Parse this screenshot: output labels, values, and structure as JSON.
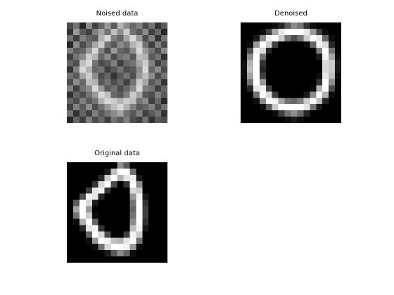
{
  "chart_data": [
    {
      "type": "heatmap",
      "title": "Noised data",
      "colormap": "gray",
      "value_range": [
        0,
        1
      ],
      "rows": 16,
      "cols": 16,
      "values": [
        [
          0.3,
          0.45,
          0.15,
          0.55,
          0.25,
          0.4,
          0.6,
          0.35,
          0.7,
          0.55,
          0.4,
          0.5,
          0.3,
          0.45,
          0.2,
          0.35
        ],
        [
          0.2,
          0.6,
          0.35,
          0.25,
          0.5,
          0.65,
          0.45,
          0.75,
          0.55,
          0.8,
          0.45,
          0.35,
          0.55,
          0.25,
          0.4,
          0.15
        ],
        [
          0.45,
          0.25,
          0.5,
          0.4,
          0.35,
          0.7,
          0.85,
          0.5,
          0.4,
          0.65,
          0.85,
          0.6,
          0.3,
          0.5,
          0.2,
          0.45
        ],
        [
          0.15,
          0.55,
          0.3,
          0.45,
          0.65,
          0.8,
          0.45,
          0.35,
          0.55,
          0.45,
          0.7,
          0.8,
          0.45,
          0.25,
          0.5,
          0.3
        ],
        [
          0.5,
          0.35,
          0.4,
          0.6,
          0.85,
          0.5,
          0.3,
          0.6,
          0.4,
          0.35,
          0.55,
          0.85,
          0.6,
          0.45,
          0.3,
          0.55
        ],
        [
          0.25,
          0.45,
          0.55,
          0.8,
          0.7,
          0.4,
          0.55,
          0.3,
          0.45,
          0.5,
          0.35,
          0.75,
          0.7,
          0.35,
          0.45,
          0.2
        ],
        [
          0.4,
          0.3,
          0.75,
          0.85,
          0.45,
          0.3,
          0.35,
          0.5,
          0.25,
          0.4,
          0.45,
          0.65,
          0.8,
          0.5,
          0.25,
          0.4
        ],
        [
          0.2,
          0.5,
          0.85,
          0.7,
          0.4,
          0.45,
          0.25,
          0.35,
          0.45,
          0.3,
          0.35,
          0.55,
          0.85,
          0.4,
          0.55,
          0.3
        ],
        [
          0.45,
          0.35,
          0.65,
          0.8,
          0.55,
          0.3,
          0.4,
          0.2,
          0.35,
          0.45,
          0.3,
          0.6,
          0.75,
          0.55,
          0.3,
          0.45
        ],
        [
          0.3,
          0.55,
          0.4,
          0.75,
          0.7,
          0.35,
          0.45,
          0.3,
          0.4,
          0.25,
          0.45,
          0.8,
          0.65,
          0.35,
          0.45,
          0.2
        ],
        [
          0.5,
          0.25,
          0.45,
          0.55,
          0.85,
          0.6,
          0.35,
          0.45,
          0.3,
          0.4,
          0.55,
          0.85,
          0.5,
          0.45,
          0.25,
          0.4
        ],
        [
          0.2,
          0.4,
          0.3,
          0.45,
          0.6,
          0.85,
          0.75,
          0.4,
          0.35,
          0.5,
          0.8,
          0.65,
          0.35,
          0.3,
          0.5,
          0.35
        ],
        [
          0.4,
          0.3,
          0.5,
          0.35,
          0.45,
          0.7,
          0.85,
          0.8,
          0.7,
          0.8,
          0.75,
          0.45,
          0.55,
          0.25,
          0.4,
          0.15
        ],
        [
          0.25,
          0.5,
          0.35,
          0.55,
          0.3,
          0.45,
          0.6,
          0.75,
          0.85,
          0.7,
          0.5,
          0.35,
          0.4,
          0.5,
          0.3,
          0.45
        ],
        [
          0.45,
          0.2,
          0.4,
          0.25,
          0.5,
          0.35,
          0.45,
          0.55,
          0.65,
          0.45,
          0.35,
          0.5,
          0.25,
          0.35,
          0.45,
          0.2
        ],
        [
          0.15,
          0.4,
          0.25,
          0.5,
          0.3,
          0.4,
          0.25,
          0.45,
          0.35,
          0.5,
          0.3,
          0.25,
          0.45,
          0.2,
          0.35,
          0.3
        ]
      ]
    },
    {
      "type": "heatmap",
      "title": "Denoised",
      "colormap": "gray",
      "value_range": [
        0,
        1
      ],
      "rows": 16,
      "cols": 16,
      "values": [
        [
          0.0,
          0.0,
          0.0,
          0.0,
          0.0,
          0.05,
          0.15,
          0.35,
          0.55,
          0.45,
          0.2,
          0.05,
          0.0,
          0.0,
          0.0,
          0.0
        ],
        [
          0.0,
          0.0,
          0.0,
          0.05,
          0.25,
          0.65,
          0.9,
          1.0,
          1.0,
          1.0,
          0.9,
          0.6,
          0.25,
          0.05,
          0.0,
          0.0
        ],
        [
          0.0,
          0.0,
          0.1,
          0.55,
          0.95,
          1.0,
          0.8,
          0.45,
          0.3,
          0.45,
          0.8,
          1.0,
          0.9,
          0.4,
          0.05,
          0.0
        ],
        [
          0.0,
          0.05,
          0.6,
          1.0,
          0.8,
          0.25,
          0.0,
          0.0,
          0.0,
          0.0,
          0.05,
          0.4,
          0.95,
          0.85,
          0.15,
          0.0
        ],
        [
          0.0,
          0.3,
          0.95,
          0.85,
          0.15,
          0.0,
          0.0,
          0.0,
          0.0,
          0.0,
          0.0,
          0.0,
          0.5,
          1.0,
          0.45,
          0.0
        ],
        [
          0.0,
          0.55,
          1.0,
          0.45,
          0.0,
          0.0,
          0.0,
          0.0,
          0.0,
          0.0,
          0.0,
          0.0,
          0.1,
          0.95,
          0.65,
          0.05
        ],
        [
          0.05,
          0.7,
          1.0,
          0.2,
          0.0,
          0.0,
          0.0,
          0.0,
          0.0,
          0.0,
          0.0,
          0.0,
          0.0,
          0.85,
          0.8,
          0.1
        ],
        [
          0.05,
          0.75,
          1.0,
          0.15,
          0.0,
          0.0,
          0.0,
          0.0,
          0.0,
          0.0,
          0.0,
          0.0,
          0.0,
          0.85,
          0.8,
          0.1
        ],
        [
          0.05,
          0.65,
          1.0,
          0.25,
          0.0,
          0.0,
          0.0,
          0.0,
          0.0,
          0.0,
          0.0,
          0.0,
          0.05,
          0.9,
          0.75,
          0.05
        ],
        [
          0.0,
          0.45,
          1.0,
          0.6,
          0.0,
          0.0,
          0.0,
          0.0,
          0.0,
          0.0,
          0.0,
          0.0,
          0.2,
          1.0,
          0.55,
          0.0
        ],
        [
          0.0,
          0.15,
          0.9,
          0.95,
          0.25,
          0.0,
          0.0,
          0.0,
          0.0,
          0.0,
          0.0,
          0.05,
          0.7,
          1.0,
          0.3,
          0.0
        ],
        [
          0.0,
          0.0,
          0.45,
          1.0,
          0.85,
          0.25,
          0.0,
          0.0,
          0.0,
          0.0,
          0.1,
          0.55,
          1.0,
          0.7,
          0.05,
          0.0
        ],
        [
          0.0,
          0.0,
          0.05,
          0.55,
          1.0,
          0.95,
          0.65,
          0.45,
          0.4,
          0.5,
          0.8,
          1.0,
          0.75,
          0.15,
          0.0,
          0.0
        ],
        [
          0.0,
          0.0,
          0.0,
          0.05,
          0.35,
          0.8,
          1.0,
          1.0,
          1.0,
          1.0,
          0.9,
          0.45,
          0.1,
          0.0,
          0.0,
          0.0
        ],
        [
          0.0,
          0.0,
          0.0,
          0.0,
          0.0,
          0.05,
          0.25,
          0.45,
          0.55,
          0.4,
          0.15,
          0.0,
          0.0,
          0.0,
          0.0,
          0.0
        ],
        [
          0.0,
          0.0,
          0.0,
          0.0,
          0.0,
          0.0,
          0.0,
          0.05,
          0.1,
          0.05,
          0.0,
          0.0,
          0.0,
          0.0,
          0.0,
          0.0
        ]
      ]
    },
    {
      "type": "heatmap",
      "title": "Original data",
      "colormap": "gray",
      "value_range": [
        0,
        1
      ],
      "rows": 16,
      "cols": 16,
      "values": [
        [
          0.0,
          0.0,
          0.0,
          0.0,
          0.0,
          0.0,
          0.0,
          0.0,
          0.55,
          0.35,
          0.0,
          0.0,
          0.0,
          0.0,
          0.0,
          0.0
        ],
        [
          0.0,
          0.0,
          0.0,
          0.0,
          0.0,
          0.0,
          0.1,
          0.75,
          1.0,
          1.0,
          0.45,
          0.0,
          0.0,
          0.0,
          0.0,
          0.0
        ],
        [
          0.0,
          0.0,
          0.0,
          0.0,
          0.0,
          0.15,
          0.8,
          1.0,
          0.7,
          0.9,
          0.95,
          0.1,
          0.0,
          0.0,
          0.0,
          0.0
        ],
        [
          0.0,
          0.0,
          0.0,
          0.0,
          0.2,
          0.85,
          1.0,
          0.3,
          0.0,
          0.2,
          1.0,
          0.55,
          0.0,
          0.0,
          0.0,
          0.0
        ],
        [
          0.0,
          0.0,
          0.0,
          0.25,
          0.9,
          0.95,
          0.2,
          0.0,
          0.0,
          0.0,
          0.85,
          0.8,
          0.0,
          0.0,
          0.0,
          0.0
        ],
        [
          0.0,
          0.0,
          0.3,
          0.95,
          0.9,
          0.15,
          0.0,
          0.0,
          0.0,
          0.0,
          0.6,
          0.95,
          0.1,
          0.0,
          0.0,
          0.0
        ],
        [
          0.0,
          0.35,
          1.0,
          0.85,
          0.1,
          0.0,
          0.0,
          0.0,
          0.0,
          0.0,
          0.45,
          1.0,
          0.2,
          0.0,
          0.0,
          0.0
        ],
        [
          0.0,
          0.65,
          1.0,
          0.6,
          0.0,
          0.0,
          0.0,
          0.0,
          0.0,
          0.0,
          0.4,
          1.0,
          0.25,
          0.0,
          0.0,
          0.0
        ],
        [
          0.0,
          0.45,
          1.0,
          0.8,
          0.05,
          0.0,
          0.0,
          0.0,
          0.0,
          0.0,
          0.45,
          1.0,
          0.25,
          0.0,
          0.0,
          0.0
        ],
        [
          0.0,
          0.05,
          0.7,
          1.0,
          0.4,
          0.0,
          0.0,
          0.0,
          0.0,
          0.0,
          0.55,
          1.0,
          0.2,
          0.0,
          0.0,
          0.0
        ],
        [
          0.0,
          0.0,
          0.15,
          0.9,
          0.95,
          0.2,
          0.0,
          0.0,
          0.0,
          0.0,
          0.75,
          0.95,
          0.1,
          0.0,
          0.0,
          0.0
        ],
        [
          0.0,
          0.0,
          0.0,
          0.4,
          1.0,
          0.85,
          0.3,
          0.0,
          0.0,
          0.25,
          0.95,
          0.8,
          0.0,
          0.0,
          0.0,
          0.0
        ],
        [
          0.0,
          0.0,
          0.0,
          0.05,
          0.6,
          1.0,
          0.95,
          0.75,
          0.7,
          0.9,
          1.0,
          0.45,
          0.0,
          0.0,
          0.0,
          0.0
        ],
        [
          0.0,
          0.0,
          0.0,
          0.0,
          0.05,
          0.45,
          0.85,
          1.0,
          1.0,
          0.95,
          0.6,
          0.05,
          0.0,
          0.0,
          0.0,
          0.0
        ],
        [
          0.0,
          0.0,
          0.0,
          0.0,
          0.0,
          0.0,
          0.1,
          0.35,
          0.55,
          0.4,
          0.05,
          0.0,
          0.0,
          0.0,
          0.0,
          0.0
        ],
        [
          0.0,
          0.0,
          0.0,
          0.0,
          0.0,
          0.0,
          0.0,
          0.0,
          0.0,
          0.0,
          0.0,
          0.0,
          0.0,
          0.0,
          0.0,
          0.0
        ]
      ]
    }
  ]
}
